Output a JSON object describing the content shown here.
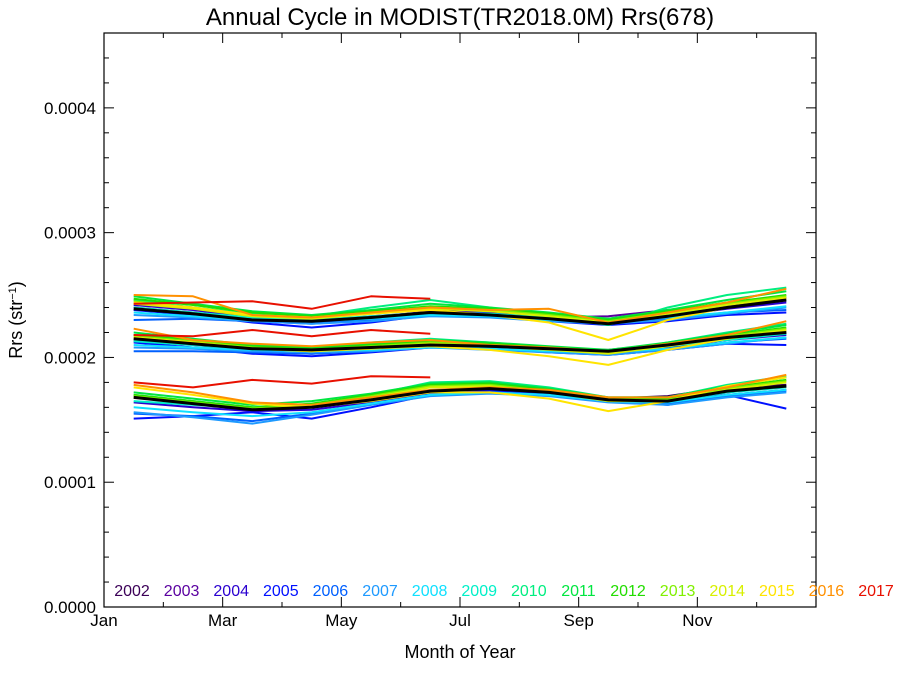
{
  "chart_data": {
    "type": "line",
    "title": "Annual Cycle in MODIST(TR2018.0M) Rrs(678)",
    "xlabel": "Month of Year",
    "ylabel_main": "Rrs (str",
    "ylabel_sup": "−1",
    "ylabel_close": ")",
    "xlim": [
      0,
      12
    ],
    "ylim": [
      0,
      0.00046
    ],
    "x_ticks": [
      {
        "value": 0,
        "label": "Jan"
      },
      {
        "value": 2,
        "label": "Mar"
      },
      {
        "value": 4,
        "label": "May"
      },
      {
        "value": 6,
        "label": "Jul"
      },
      {
        "value": 8,
        "label": "Sep"
      },
      {
        "value": 10,
        "label": "Nov"
      }
    ],
    "y_ticks": [
      {
        "value": 0,
        "label": "0.0000"
      },
      {
        "value": 0.0001,
        "label": "0.0001"
      },
      {
        "value": 0.0002,
        "label": "0.0002"
      },
      {
        "value": 0.0003,
        "label": "0.0003"
      },
      {
        "value": 0.0004,
        "label": "0.0004"
      }
    ],
    "x": [
      0.5,
      1.5,
      2.5,
      3.5,
      4.5,
      5.5,
      6.5,
      7.5,
      8.5,
      9.5,
      10.5,
      11.5
    ],
    "bands": [
      "upper",
      "middle",
      "lower"
    ],
    "series": [
      {
        "name": "2002",
        "color": "#3b0057",
        "upper": [
          null,
          null,
          null,
          null,
          null,
          0.000239,
          0.000236,
          0.000233,
          0.000231,
          0.000236,
          0.000243,
          0.000248
        ],
        "middle": [
          null,
          null,
          null,
          null,
          null,
          0.00021,
          0.000209,
          0.000207,
          0.000206,
          0.000211,
          0.000217,
          0.000221
        ],
        "lower": [
          null,
          null,
          null,
          null,
          null,
          0.000173,
          0.000175,
          0.000172,
          0.000167,
          0.000169,
          0.000176,
          0.000178
        ]
      },
      {
        "name": "2003",
        "color": "#5a00a0",
        "upper": [
          0.00024,
          0.000236,
          0.000231,
          0.000229,
          0.000233,
          0.000236,
          0.000234,
          0.000232,
          0.000233,
          0.000238,
          0.000242,
          0.000247
        ],
        "middle": [
          0.000213,
          0.00021,
          0.000206,
          0.000205,
          0.000207,
          0.000209,
          0.000208,
          0.000206,
          0.000205,
          0.00021,
          0.000216,
          0.00022
        ],
        "lower": [
          0.000168,
          0.000163,
          0.000158,
          0.00016,
          0.000166,
          0.000172,
          0.000174,
          0.000171,
          0.000166,
          0.000163,
          0.000172,
          0.000177
        ]
      },
      {
        "name": "2004",
        "color": "#2a00d0",
        "upper": [
          0.000242,
          0.000238,
          0.000232,
          0.000228,
          0.000232,
          0.000237,
          0.000236,
          0.000232,
          0.000229,
          0.000233,
          0.000239,
          0.000244
        ],
        "middle": [
          0.000215,
          0.000211,
          0.000206,
          0.000203,
          0.000206,
          0.00021,
          0.000209,
          0.000206,
          0.000204,
          0.000208,
          0.000214,
          0.000218
        ],
        "lower": [
          0.000164,
          0.00016,
          0.000157,
          0.000158,
          0.000164,
          0.000171,
          0.000174,
          0.000172,
          0.000167,
          0.000164,
          0.00017,
          0.000174
        ]
      },
      {
        "name": "2005",
        "color": "#0010ff",
        "upper": [
          0.000238,
          0.000234,
          0.000228,
          0.000224,
          0.000228,
          0.000234,
          0.000233,
          0.000229,
          0.000226,
          0.000229,
          0.000234,
          0.000236
        ],
        "middle": [
          0.000212,
          0.000208,
          0.000203,
          0.000201,
          0.000204,
          0.000208,
          0.000207,
          0.000204,
          0.000202,
          0.000206,
          0.000211,
          0.00021
        ],
        "lower": [
          0.000151,
          0.000153,
          0.000156,
          0.000151,
          0.00016,
          0.00017,
          0.000173,
          0.000171,
          0.000166,
          0.000162,
          0.00017,
          0.000159
        ]
      },
      {
        "name": "2006",
        "color": "#0060ff",
        "upper": [
          0.00023,
          0.000231,
          0.000229,
          0.000227,
          0.00023,
          0.000234,
          0.000233,
          0.00023,
          0.000228,
          0.000231,
          0.000236,
          0.000238
        ],
        "middle": [
          0.000205,
          0.000205,
          0.000204,
          0.000203,
          0.000205,
          0.000208,
          0.000207,
          0.000205,
          0.000203,
          0.000207,
          0.000212,
          0.000215
        ],
        "lower": [
          0.000155,
          0.000153,
          0.000149,
          0.000155,
          0.000163,
          0.00017,
          0.000172,
          0.00017,
          0.000165,
          0.000163,
          0.000169,
          0.000173
        ]
      },
      {
        "name": "2007",
        "color": "#1e9aff",
        "upper": [
          0.000234,
          0.000232,
          0.000229,
          0.000227,
          0.000229,
          0.000233,
          0.000232,
          0.000229,
          0.000227,
          0.00023,
          0.000235,
          0.00024
        ],
        "middle": [
          0.000208,
          0.000207,
          0.000205,
          0.000204,
          0.000205,
          0.000208,
          0.000206,
          0.000204,
          0.000202,
          0.000206,
          0.000211,
          0.000216
        ],
        "lower": [
          0.000156,
          0.000152,
          0.000147,
          0.000154,
          0.000162,
          0.000169,
          0.000171,
          0.000169,
          0.000164,
          0.000162,
          0.000168,
          0.000172
        ]
      },
      {
        "name": "2008",
        "color": "#10e0ff",
        "upper": [
          0.000236,
          0.000233,
          0.00023,
          0.000229,
          0.000231,
          0.000234,
          0.000233,
          0.00023,
          0.000229,
          0.000232,
          0.000236,
          0.000241
        ],
        "middle": [
          0.00021,
          0.000208,
          0.000206,
          0.000205,
          0.000206,
          0.000208,
          0.000207,
          0.000205,
          0.000204,
          0.000207,
          0.000212,
          0.000216
        ],
        "lower": [
          0.00016,
          0.000156,
          0.000153,
          0.000156,
          0.000163,
          0.00017,
          0.000172,
          0.00017,
          0.000165,
          0.000164,
          0.00017,
          0.000174
        ]
      },
      {
        "name": "2009",
        "color": "#00f0c8",
        "upper": [
          0.00024,
          0.000236,
          0.000232,
          0.00023,
          0.000233,
          0.000236,
          0.000235,
          0.000232,
          0.00023,
          0.000234,
          0.00024,
          0.000246
        ],
        "middle": [
          0.000213,
          0.00021,
          0.000207,
          0.000206,
          0.000207,
          0.00021,
          0.000209,
          0.000207,
          0.000205,
          0.000209,
          0.000214,
          0.000219
        ],
        "lower": [
          0.000165,
          0.000162,
          0.000159,
          0.00016,
          0.000166,
          0.000172,
          0.000175,
          0.000172,
          0.000167,
          0.000165,
          0.000172,
          0.000176
        ]
      },
      {
        "name": "2010",
        "color": "#00ee80",
        "upper": [
          0.000246,
          0.00024,
          0.000235,
          0.000233,
          0.00024,
          0.000246,
          0.00024,
          0.000233,
          0.000226,
          0.00024,
          0.00025,
          0.000256
        ],
        "middle": [
          0.000218,
          0.000213,
          0.000209,
          0.000208,
          0.000212,
          0.000215,
          0.000212,
          0.000208,
          0.000204,
          0.000212,
          0.00022,
          0.000227
        ],
        "lower": [
          0.00017,
          0.000165,
          0.00016,
          0.000162,
          0.00017,
          0.00018,
          0.000181,
          0.000176,
          0.000168,
          0.000168,
          0.000178,
          0.000185
        ]
      },
      {
        "name": "2011",
        "color": "#00e640",
        "upper": [
          0.000249,
          0.000243,
          0.000237,
          0.000234,
          0.000238,
          0.000243,
          0.00024,
          0.000236,
          0.000231,
          0.000238,
          0.000246,
          0.000253
        ],
        "middle": [
          0.00022,
          0.000215,
          0.00021,
          0.000208,
          0.000211,
          0.000214,
          0.000212,
          0.000209,
          0.000206,
          0.000212,
          0.000219,
          0.000226
        ],
        "lower": [
          0.000172,
          0.000167,
          0.000162,
          0.000165,
          0.000171,
          0.000179,
          0.00018,
          0.000175,
          0.000168,
          0.000168,
          0.000177,
          0.000184
        ]
      },
      {
        "name": "2012",
        "color": "#22dd00",
        "upper": [
          0.000247,
          0.000242,
          0.000236,
          0.000233,
          0.000237,
          0.000241,
          0.000239,
          0.000235,
          0.00023,
          0.000237,
          0.000244,
          0.00025
        ],
        "middle": [
          0.000218,
          0.000214,
          0.000209,
          0.000207,
          0.00021,
          0.000213,
          0.000211,
          0.000208,
          0.000205,
          0.000211,
          0.000218,
          0.000224
        ],
        "lower": [
          0.00017,
          0.000165,
          0.00016,
          0.000163,
          0.00017,
          0.000178,
          0.000179,
          0.000174,
          0.000167,
          0.000167,
          0.000176,
          0.000182
        ]
      },
      {
        "name": "2013",
        "color": "#80f000",
        "upper": [
          0.000245,
          0.00024,
          0.000234,
          0.000232,
          0.000236,
          0.00024,
          0.000238,
          0.000234,
          0.000229,
          0.000236,
          0.000243,
          0.000249
        ],
        "middle": [
          0.000217,
          0.000213,
          0.000208,
          0.000206,
          0.000209,
          0.000212,
          0.00021,
          0.000207,
          0.000204,
          0.00021,
          0.000217,
          0.000223
        ],
        "lower": [
          0.000169,
          0.000164,
          0.000159,
          0.000162,
          0.000169,
          0.000177,
          0.000178,
          0.000173,
          0.000166,
          0.000166,
          0.000175,
          0.000181
        ]
      },
      {
        "name": "2014",
        "color": "#d8f000",
        "upper": [
          0.000243,
          0.000239,
          0.000233,
          0.000231,
          0.000235,
          0.000239,
          0.000237,
          0.000233,
          0.000228,
          0.000235,
          0.000242,
          0.000248
        ],
        "middle": [
          0.000216,
          0.000212,
          0.000207,
          0.000205,
          0.000208,
          0.000211,
          0.000209,
          0.000206,
          0.000203,
          0.000209,
          0.000216,
          0.000222
        ],
        "lower": [
          0.000168,
          0.000163,
          0.000158,
          0.000161,
          0.000168,
          0.000176,
          0.000177,
          0.000172,
          0.000165,
          0.000165,
          0.000174,
          0.00018
        ]
      },
      {
        "name": "2015",
        "color": "#ffe400",
        "upper": [
          0.000244,
          0.00024,
          0.000234,
          0.000232,
          0.000235,
          0.000238,
          0.000234,
          0.000228,
          0.000214,
          0.00023,
          0.00024,
          0.000247
        ],
        "middle": [
          0.000216,
          0.000212,
          0.000207,
          0.000205,
          0.000207,
          0.000209,
          0.000206,
          0.000201,
          0.000194,
          0.000206,
          0.000215,
          0.000221
        ],
        "lower": [
          0.000176,
          0.00017,
          0.000163,
          0.00016,
          0.000165,
          0.000172,
          0.000172,
          0.000167,
          0.000157,
          0.000165,
          0.000177,
          0.000184
        ]
      },
      {
        "name": "2016",
        "color": "#ff9000",
        "upper": [
          0.00025,
          0.000249,
          0.000234,
          0.000232,
          0.000236,
          0.00024,
          0.000238,
          0.000239,
          0.000228,
          0.000236,
          0.000244,
          0.000255
        ],
        "middle": [
          0.000223,
          0.000214,
          0.000211,
          0.000209,
          0.000212,
          0.000214,
          0.00021,
          0.000208,
          0.000205,
          0.000211,
          0.000218,
          0.000229
        ],
        "lower": [
          0.000178,
          0.000172,
          0.000164,
          0.000162,
          0.000168,
          0.000174,
          0.000176,
          0.000174,
          0.000168,
          0.000168,
          0.000176,
          0.000186
        ]
      },
      {
        "name": "2017",
        "color": "#e81000",
        "upper": [
          0.000243,
          0.000244,
          0.000245,
          0.000239,
          0.000249,
          0.000247,
          null,
          null,
          null,
          null,
          null,
          null
        ],
        "middle": [
          0.000218,
          0.000217,
          0.000222,
          0.000217,
          0.000222,
          0.000219,
          null,
          null,
          null,
          null,
          null,
          null
        ],
        "lower": [
          0.00018,
          0.000176,
          0.000182,
          0.000179,
          0.000185,
          0.000184,
          null,
          null,
          null,
          null,
          null,
          null
        ]
      }
    ],
    "mean": {
      "color": "#000000",
      "upper": [
        0.000239,
        0.000235,
        0.00023,
        0.000229,
        0.000232,
        0.000236,
        0.000234,
        0.000231,
        0.000227,
        0.000233,
        0.00024,
        0.000246
      ],
      "middle": [
        0.000215,
        0.000211,
        0.000207,
        0.000206,
        0.000208,
        0.00021,
        0.000209,
        0.000207,
        0.000205,
        0.00021,
        0.000216,
        0.00022
      ],
      "lower": [
        0.000168,
        0.000163,
        0.000158,
        0.00016,
        0.000166,
        0.000173,
        0.000175,
        0.000172,
        0.000166,
        0.000165,
        0.000173,
        0.000177
      ]
    }
  }
}
